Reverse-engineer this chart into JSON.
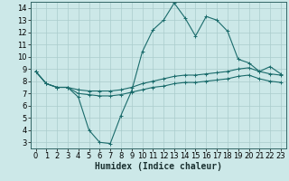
{
  "xlabel": "Humidex (Indice chaleur)",
  "background_color": "#cce8e8",
  "grid_color": "#aacccc",
  "line_color": "#1a6b6b",
  "x_values": [
    0,
    1,
    2,
    3,
    4,
    5,
    6,
    7,
    8,
    9,
    10,
    11,
    12,
    13,
    14,
    15,
    16,
    17,
    18,
    19,
    20,
    21,
    22,
    23
  ],
  "y_max": [
    8.8,
    7.8,
    7.5,
    7.5,
    6.7,
    4.0,
    3.0,
    2.9,
    5.2,
    7.2,
    10.4,
    12.2,
    13.0,
    14.4,
    13.2,
    11.7,
    13.3,
    13.0,
    12.1,
    9.8,
    9.5,
    8.8,
    9.2,
    8.6
  ],
  "y_avg": [
    8.8,
    7.8,
    7.5,
    7.5,
    7.3,
    7.2,
    7.2,
    7.2,
    7.3,
    7.5,
    7.8,
    8.0,
    8.2,
    8.4,
    8.5,
    8.5,
    8.6,
    8.7,
    8.8,
    9.0,
    9.1,
    8.8,
    8.6,
    8.5
  ],
  "y_min": [
    8.8,
    7.8,
    7.5,
    7.5,
    7.0,
    6.9,
    6.8,
    6.8,
    6.9,
    7.1,
    7.3,
    7.5,
    7.6,
    7.8,
    7.9,
    7.9,
    8.0,
    8.1,
    8.2,
    8.4,
    8.5,
    8.2,
    8.0,
    7.9
  ],
  "xlim": [
    -0.5,
    23.5
  ],
  "ylim": [
    2.5,
    14.5
  ],
  "yticks": [
    3,
    4,
    5,
    6,
    7,
    8,
    9,
    10,
    11,
    12,
    13,
    14
  ],
  "xticks": [
    0,
    1,
    2,
    3,
    4,
    5,
    6,
    7,
    8,
    9,
    10,
    11,
    12,
    13,
    14,
    15,
    16,
    17,
    18,
    19,
    20,
    21,
    22,
    23
  ],
  "label_fontsize": 7,
  "tick_fontsize": 6
}
